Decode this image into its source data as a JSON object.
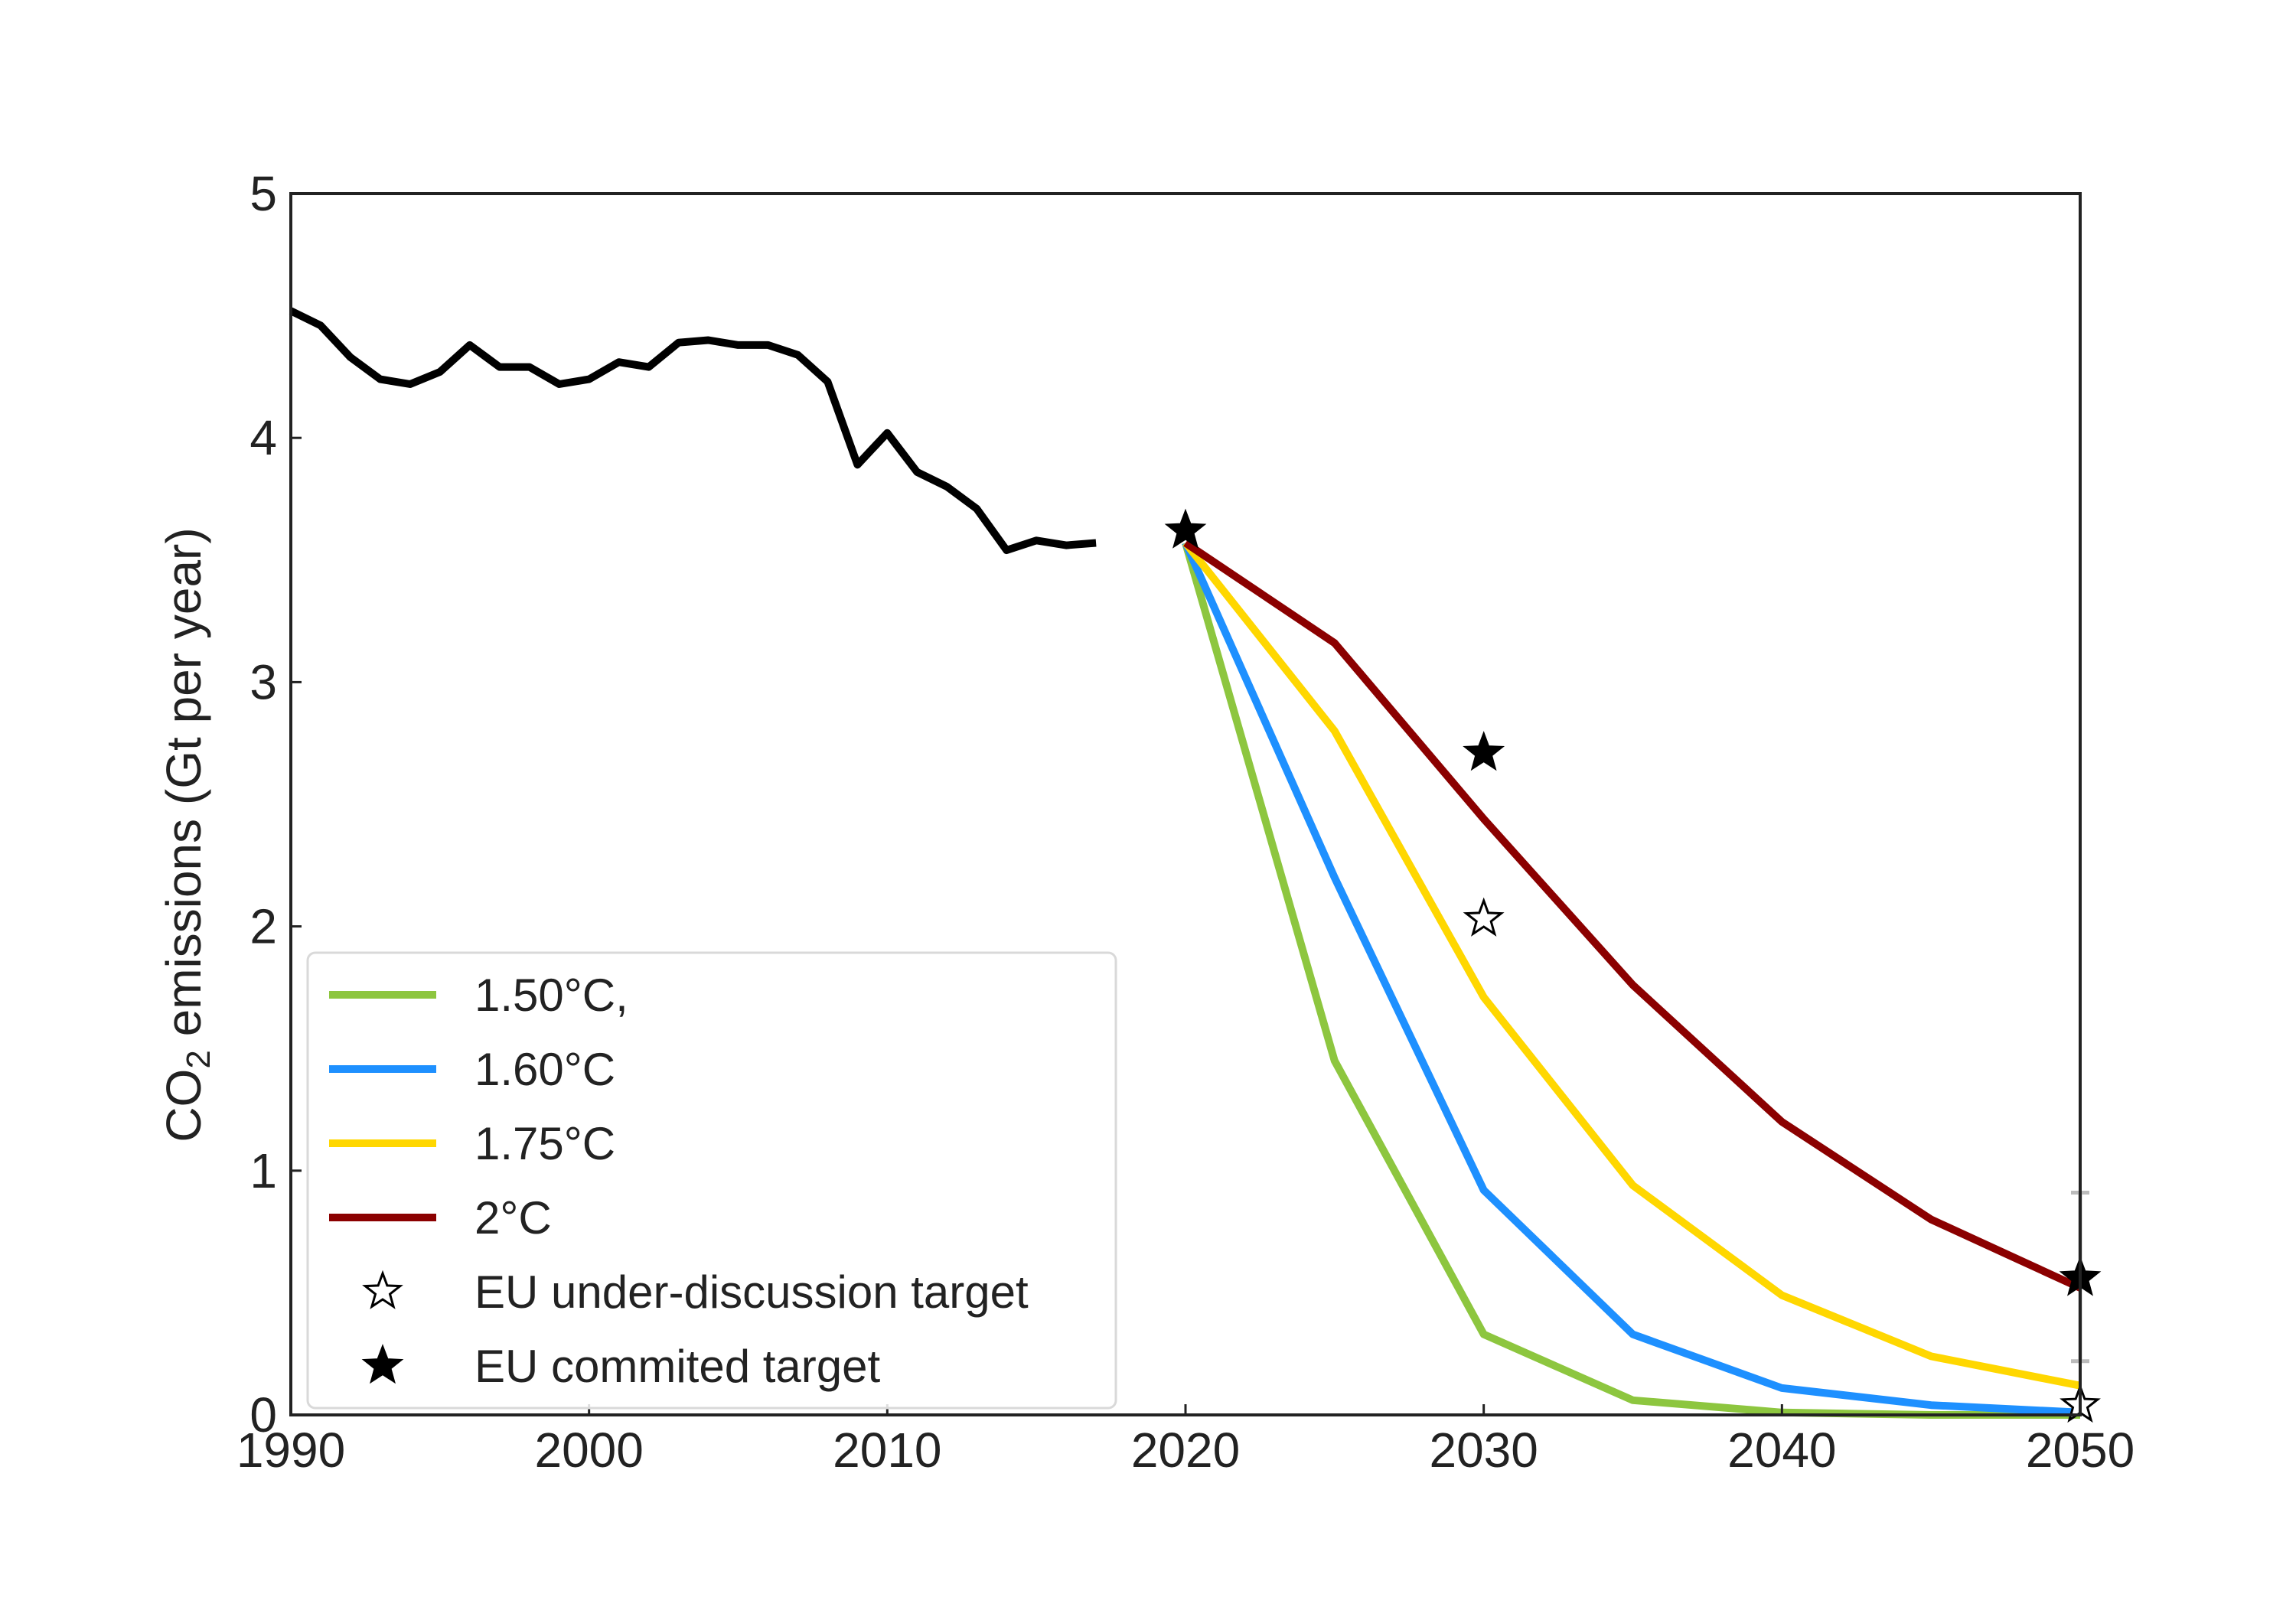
{
  "chart_data": {
    "type": "line",
    "title": "",
    "xlabel": "",
    "ylabel_parts": {
      "prefix": "CO",
      "subscript": "2",
      "suffix": " emissions (Gt per year)"
    },
    "xlim": [
      1990,
      2050
    ],
    "ylim": [
      0,
      5
    ],
    "xticks": [
      1990,
      2000,
      2010,
      2020,
      2030,
      2040,
      2050
    ],
    "yticks": [
      0,
      1,
      2,
      3,
      4,
      5
    ],
    "grid": false,
    "legend_position": "lower-left",
    "historical": {
      "color": "#000000",
      "x": [
        1990,
        1991,
        1992,
        1993,
        1994,
        1995,
        1996,
        1997,
        1998,
        1999,
        2000,
        2001,
        2002,
        2003,
        2004,
        2005,
        2006,
        2007,
        2008,
        2009,
        2010,
        2011,
        2012,
        2013,
        2014,
        2015,
        2016,
        2017
      ],
      "y": [
        4.52,
        4.46,
        4.33,
        4.24,
        4.22,
        4.27,
        4.38,
        4.29,
        4.29,
        4.22,
        4.24,
        4.31,
        4.29,
        4.39,
        4.4,
        4.38,
        4.38,
        4.34,
        4.23,
        3.89,
        4.02,
        3.86,
        3.8,
        3.71,
        3.54,
        3.58,
        3.56,
        3.57
      ]
    },
    "series": [
      {
        "name": "1.50°C,",
        "color": "#8dc63f",
        "x": [
          2020,
          2025,
          2030,
          2035,
          2040,
          2045,
          2050
        ],
        "y": [
          3.57,
          1.45,
          0.33,
          0.06,
          0.01,
          0.0,
          0.0
        ]
      },
      {
        "name": "1.60°C",
        "color": "#1e90ff",
        "x": [
          2020,
          2025,
          2030,
          2035,
          2040,
          2045,
          2050
        ],
        "y": [
          3.57,
          2.2,
          0.92,
          0.33,
          0.11,
          0.04,
          0.01
        ]
      },
      {
        "name": "1.75°C",
        "color": "#ffd700",
        "x": [
          2020,
          2025,
          2030,
          2035,
          2040,
          2045,
          2050
        ],
        "y": [
          3.57,
          2.8,
          1.71,
          0.94,
          0.49,
          0.24,
          0.12
        ]
      },
      {
        "name": "2°C",
        "color": "#8b0000",
        "x": [
          2020,
          2025,
          2030,
          2035,
          2040,
          2045,
          2050
        ],
        "y": [
          3.57,
          3.16,
          2.44,
          1.76,
          1.2,
          0.8,
          0.52
        ]
      }
    ],
    "markers": [
      {
        "name": "EU under-discussion target",
        "style": "open-star",
        "points": [
          {
            "x": 2030,
            "y": 2.03
          },
          {
            "x": 2050,
            "y": 0.04
          }
        ]
      },
      {
        "name": "EU commited target",
        "style": "filled-star",
        "points": [
          {
            "x": 2020,
            "y": 3.62
          },
          {
            "x": 2030,
            "y": 2.71
          },
          {
            "x": 2050,
            "y": 0.56
          }
        ]
      }
    ],
    "error_bar": {
      "x": 2050,
      "low": 0.22,
      "high": 0.91,
      "color": "#bbbbbb"
    }
  }
}
